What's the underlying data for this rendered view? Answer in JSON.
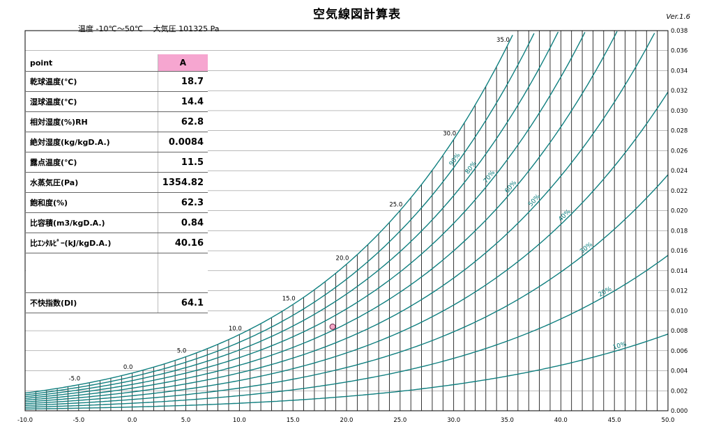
{
  "title": "空気線図計算表",
  "version": "Ver.1.6",
  "range_note": "温度 -10℃～50℃　 大気圧 101325 Pa",
  "table": {
    "header": {
      "label": "point",
      "value": "A"
    },
    "rows": [
      {
        "label": "乾球温度(℃)",
        "value": "18.7"
      },
      {
        "label": "湿球温度(℃)",
        "value": "14.4"
      },
      {
        "label": "相対湿度(%)RH",
        "value": "62.8"
      },
      {
        "label": "絶対湿度(kg/kgD.A.)",
        "value": "0.0084"
      },
      {
        "label": "露点温度(℃)",
        "value": "11.5"
      },
      {
        "label": "水蒸気圧(Pa)",
        "value": "1354.82"
      },
      {
        "label": "飽和度(%)",
        "value": "62.3"
      },
      {
        "label": "比容積(m3/kgD.A.)",
        "value": "0.84"
      },
      {
        "label": "比ｴﾝﾀﾙﾋﾟｰ(kJ/kgD.A.)",
        "value": "40.16"
      },
      {
        "label": "",
        "value": ""
      },
      {
        "label": "不快指数(DI)",
        "value": "64.1"
      }
    ]
  },
  "chart_data": {
    "type": "line",
    "x_ticks": [
      "-10.0",
      "-5.0",
      "0.0",
      "5.0",
      "10.0",
      "15.0",
      "20.0",
      "25.0",
      "30.0",
      "35.0",
      "40.0",
      "45.0",
      "50.0"
    ],
    "y_ticks": [
      "0.000",
      "0.002",
      "0.004",
      "0.006",
      "0.008",
      "0.010",
      "0.012",
      "0.014",
      "0.016",
      "0.018",
      "0.020",
      "0.022",
      "0.024",
      "0.026",
      "0.028",
      "0.030",
      "0.032",
      "0.034",
      "0.036",
      "0.038"
    ],
    "xlim": [
      -10,
      50
    ],
    "ylim": [
      0,
      0.038
    ],
    "pressure_pa": 101325,
    "rh_curves": [
      100,
      90,
      80,
      70,
      60,
      50,
      40,
      30,
      20,
      10
    ],
    "rh_labels": [
      "90%",
      "80%",
      "70%",
      "60%",
      "50%",
      "40%",
      "30%",
      "20%",
      "10%"
    ],
    "saturation_labels": [
      "-5.0",
      "0.0",
      "5.0",
      "10.0",
      "15.0",
      "20.0",
      "25.0",
      "30.0",
      "35.0"
    ],
    "point": {
      "name": "A",
      "x": 18.7,
      "y": 0.0084
    },
    "colors": {
      "curve": "#0f7f7f",
      "grid": "#000000",
      "point": "#f4a7c7"
    }
  }
}
